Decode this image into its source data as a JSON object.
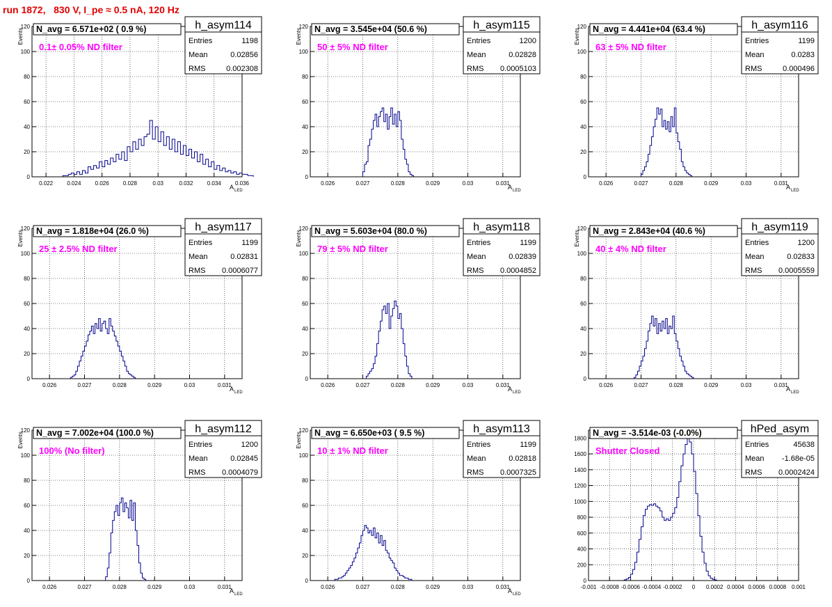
{
  "page_title": "run 1872,   830 V, I_pe ≈ 0.5 nA, 120 Hz",
  "colors": {
    "histogram": "#00008b",
    "annotation": "#ff00ff",
    "title": "#e00000",
    "grid": "#000000"
  },
  "stat_labels": {
    "entries": "Entries",
    "mean": "Mean",
    "rms": "RMS"
  },
  "chart_data": [
    {
      "type": "histogram",
      "name": "h_asym114",
      "navg": "N_avg = 6.571e+02 ( 0.9 %)",
      "filter": "0.1± 0.05% ND filter",
      "stats": {
        "entries": "1198",
        "mean": "0.02856",
        "rms": "0.002308"
      },
      "ylabel": "Events",
      "xlabel": "A",
      "xlabel_sub": "LED",
      "xlim": [
        0.021,
        0.036
      ],
      "ylim": [
        0,
        120
      ],
      "xticks": [
        0.022,
        0.024,
        0.026,
        0.028,
        0.03,
        0.032,
        0.034,
        0.036
      ],
      "xticklabels": [
        "0.022",
        "0.024",
        "0.026",
        "0.028",
        "0.03",
        "0.032",
        "0.034",
        "0.036"
      ],
      "yticks": [
        0,
        20,
        40,
        60,
        80,
        100,
        120
      ],
      "bin_start": 0.0232,
      "bin_width": 0.0002,
      "counts": [
        1,
        1,
        2,
        3,
        2,
        4,
        2,
        5,
        3,
        8,
        6,
        9,
        7,
        12,
        8,
        13,
        10,
        15,
        12,
        18,
        14,
        20,
        13,
        24,
        20,
        28,
        22,
        30,
        25,
        32,
        34,
        45,
        30,
        40,
        28,
        36,
        25,
        32,
        22,
        30,
        20,
        28,
        18,
        25,
        17,
        22,
        15,
        20,
        12,
        18,
        10,
        14,
        8,
        12,
        6,
        9,
        5,
        7,
        4,
        5,
        3,
        4,
        2,
        3,
        2,
        2,
        1,
        1
      ]
    },
    {
      "type": "histogram",
      "name": "h_asym115",
      "navg": "N_avg = 3.545e+04 (50.6 %)",
      "filter": "50 ± 5% ND filter",
      "stats": {
        "entries": "1200",
        "mean": "0.02828",
        "rms": "0.0005103"
      },
      "ylabel": "Events",
      "xlabel": "A",
      "xlabel_sub": "LED",
      "xlim": [
        0.0255,
        0.0315
      ],
      "ylim": [
        0,
        120
      ],
      "xticks": [
        0.026,
        0.027,
        0.028,
        0.029,
        0.03,
        0.031
      ],
      "xticklabels": [
        "0.026",
        "0.027",
        "0.028",
        "0.029",
        "0.03",
        "0.031"
      ],
      "yticks": [
        0,
        20,
        40,
        60,
        80,
        100,
        120
      ],
      "bin_start": 0.027,
      "bin_width": 5e-05,
      "counts": [
        4,
        10,
        12,
        25,
        30,
        38,
        45,
        50,
        40,
        48,
        52,
        55,
        44,
        50,
        38,
        48,
        55,
        42,
        50,
        40,
        52,
        45,
        30,
        22,
        14,
        10,
        4,
        2,
        1
      ]
    },
    {
      "type": "histogram",
      "name": "h_asym116",
      "navg": "N_avg = 4.441e+04 (63.4 %)",
      "filter": "63 ± 5% ND filter",
      "stats": {
        "entries": "1199",
        "mean": "0.0283",
        "rms": "0.000496"
      },
      "ylabel": "Events",
      "xlabel": "A",
      "xlabel_sub": "LED",
      "xlim": [
        0.0255,
        0.0315
      ],
      "ylim": [
        0,
        120
      ],
      "xticks": [
        0.026,
        0.027,
        0.028,
        0.029,
        0.03,
        0.031
      ],
      "xticklabels": [
        "0.026",
        "0.027",
        "0.028",
        "0.029",
        "0.03",
        "0.031"
      ],
      "yticks": [
        0,
        20,
        40,
        60,
        80,
        100,
        120
      ],
      "bin_start": 0.027,
      "bin_width": 5e-05,
      "counts": [
        2,
        5,
        8,
        12,
        18,
        25,
        32,
        40,
        46,
        55,
        50,
        54,
        40,
        45,
        38,
        44,
        36,
        48,
        40,
        55,
        35,
        28,
        22,
        12,
        8,
        5,
        3,
        2,
        1
      ]
    },
    {
      "type": "histogram",
      "name": "h_asym117",
      "navg": "N_avg = 1.818e+04 (26.0 %)",
      "filter": "25 ± 2.5% ND filter",
      "stats": {
        "entries": "1199",
        "mean": "0.02831",
        "rms": "0.0006077"
      },
      "ylabel": "Events",
      "xlabel": "A",
      "xlabel_sub": "LED",
      "xlim": [
        0.0255,
        0.0315
      ],
      "ylim": [
        0,
        120
      ],
      "xticks": [
        0.026,
        0.027,
        0.028,
        0.029,
        0.03,
        0.031
      ],
      "xticklabels": [
        "0.026",
        "0.027",
        "0.028",
        "0.029",
        "0.03",
        "0.031"
      ],
      "yticks": [
        0,
        20,
        40,
        60,
        80,
        100,
        120
      ],
      "bin_start": 0.0266,
      "bin_width": 5e-05,
      "counts": [
        1,
        2,
        3,
        6,
        10,
        14,
        18,
        22,
        26,
        30,
        35,
        38,
        42,
        36,
        44,
        40,
        48,
        38,
        44,
        46,
        40,
        36,
        48,
        42,
        38,
        34,
        30,
        26,
        22,
        18,
        14,
        10,
        6,
        4,
        3,
        2,
        1
      ]
    },
    {
      "type": "histogram",
      "name": "h_asym118",
      "navg": "N_avg = 5.603e+04 (80.0 %)",
      "filter": "79 ± 5% ND filter",
      "stats": {
        "entries": "1199",
        "mean": "0.02839",
        "rms": "0.0004852"
      },
      "ylabel": "Events",
      "xlabel": "A",
      "xlabel_sub": "LED",
      "xlim": [
        0.0255,
        0.0315
      ],
      "ylim": [
        0,
        120
      ],
      "xticks": [
        0.026,
        0.027,
        0.028,
        0.029,
        0.03,
        0.031
      ],
      "xticklabels": [
        "0.026",
        "0.027",
        "0.028",
        "0.029",
        "0.03",
        "0.031"
      ],
      "yticks": [
        0,
        20,
        40,
        60,
        80,
        100,
        120
      ],
      "bin_start": 0.0271,
      "bin_width": 5e-05,
      "counts": [
        2,
        4,
        6,
        8,
        12,
        18,
        28,
        38,
        46,
        55,
        58,
        52,
        60,
        40,
        50,
        56,
        62,
        58,
        48,
        52,
        40,
        28,
        18,
        10,
        4,
        2
      ]
    },
    {
      "type": "histogram",
      "name": "h_asym119",
      "navg": "N_avg = 2.843e+04 (40.6 %)",
      "filter": "40 ± 4% ND filter",
      "stats": {
        "entries": "1200",
        "mean": "0.02833",
        "rms": "0.0005559"
      },
      "ylabel": "Events",
      "xlabel": "A",
      "xlabel_sub": "LED",
      "xlim": [
        0.0255,
        0.0315
      ],
      "ylim": [
        0,
        120
      ],
      "xticks": [
        0.026,
        0.027,
        0.028,
        0.029,
        0.03,
        0.031
      ],
      "xticklabels": [
        "0.026",
        "0.027",
        "0.028",
        "0.029",
        "0.03",
        "0.031"
      ],
      "yticks": [
        0,
        20,
        40,
        60,
        80,
        100,
        120
      ],
      "bin_start": 0.0268,
      "bin_width": 5e-05,
      "counts": [
        1,
        3,
        6,
        10,
        14,
        18,
        24,
        30,
        38,
        44,
        50,
        42,
        48,
        36,
        44,
        38,
        46,
        40,
        48,
        36,
        42,
        40,
        50,
        36,
        30,
        24,
        18,
        14,
        10,
        6,
        4,
        3,
        2,
        1
      ]
    },
    {
      "type": "histogram",
      "name": "h_asym112",
      "navg": "N_avg = 7.002e+04 (100.0 %)",
      "filter": "100% (No filter)",
      "stats": {
        "entries": "1200",
        "mean": "0.02845",
        "rms": "0.0004079"
      },
      "ylabel": "Events",
      "xlabel": "A",
      "xlabel_sub": "LED",
      "xlim": [
        0.0255,
        0.0315
      ],
      "ylim": [
        0,
        120
      ],
      "xticks": [
        0.026,
        0.027,
        0.028,
        0.029,
        0.03,
        0.031
      ],
      "xticklabels": [
        "0.026",
        "0.027",
        "0.028",
        "0.029",
        "0.03",
        "0.031"
      ],
      "yticks": [
        0,
        20,
        40,
        60,
        80,
        100,
        120
      ],
      "bin_start": 0.0276,
      "bin_width": 5e-05,
      "counts": [
        3,
        10,
        22,
        38,
        48,
        55,
        60,
        52,
        62,
        66,
        55,
        62,
        58,
        50,
        64,
        48,
        62,
        40,
        28,
        14,
        6,
        2,
        1
      ]
    },
    {
      "type": "histogram",
      "name": "h_asym113",
      "navg": "N_avg = 6.650e+03 ( 9.5 %)",
      "filter": "10 ± 1% ND filter",
      "stats": {
        "entries": "1199",
        "mean": "0.02818",
        "rms": "0.0007325"
      },
      "ylabel": "Events",
      "xlabel": "A",
      "xlabel_sub": "LED",
      "xlim": [
        0.0255,
        0.0315
      ],
      "ylim": [
        0,
        120
      ],
      "xticks": [
        0.026,
        0.027,
        0.028,
        0.029,
        0.03,
        0.031
      ],
      "xticklabels": [
        "0.026",
        "0.027",
        "0.028",
        "0.029",
        "0.03",
        "0.031"
      ],
      "yticks": [
        0,
        20,
        40,
        60,
        80,
        100,
        120
      ],
      "bin_start": 0.0262,
      "bin_width": 5e-05,
      "counts": [
        1,
        1,
        2,
        2,
        3,
        4,
        6,
        8,
        10,
        12,
        15,
        18,
        22,
        26,
        30,
        36,
        40,
        44,
        42,
        38,
        40,
        36,
        42,
        34,
        38,
        30,
        36,
        28,
        32,
        24,
        22,
        18,
        16,
        14,
        10,
        8,
        6,
        4,
        4,
        3,
        2,
        2,
        1,
        1
      ]
    },
    {
      "type": "histogram",
      "name": "hPed_asym",
      "navg": "N_avg = -3.514e-03 (-0.0%)",
      "filter": "Shutter Closed",
      "stats": {
        "entries": "45638",
        "mean": "-1.68e-05",
        "rms": "0.0002424"
      },
      "ylabel": "",
      "xlabel": "",
      "xlabel_sub": "",
      "xlim": [
        -0.001,
        0.001
      ],
      "ylim": [
        0,
        1900
      ],
      "xticks": [
        -0.001,
        -0.0008,
        -0.0006,
        -0.0004,
        -0.0002,
        0,
        0.0002,
        0.0004,
        0.0006,
        0.0008,
        0.001
      ],
      "xticklabels": [
        "-0.001",
        "-0.0008",
        "-0.0006",
        "-0.0004",
        "-0.0002",
        "0",
        "0.0002",
        "0.0004",
        "0.0006",
        "0.0008",
        "0.001"
      ],
      "yticks": [
        0,
        200,
        400,
        600,
        800,
        1000,
        1200,
        1400,
        1600,
        1800
      ],
      "bin_start": -0.00066,
      "bin_width": 2e-05,
      "counts": [
        10,
        20,
        40,
        80,
        140,
        230,
        360,
        520,
        680,
        820,
        900,
        940,
        960,
        950,
        970,
        940,
        920,
        880,
        800,
        760,
        780,
        760,
        800,
        850,
        920,
        1050,
        1250,
        1450,
        1600,
        1720,
        1800,
        1750,
        1600,
        1380,
        1100,
        820,
        560,
        360,
        220,
        120,
        60,
        30,
        15,
        8
      ]
    }
  ]
}
